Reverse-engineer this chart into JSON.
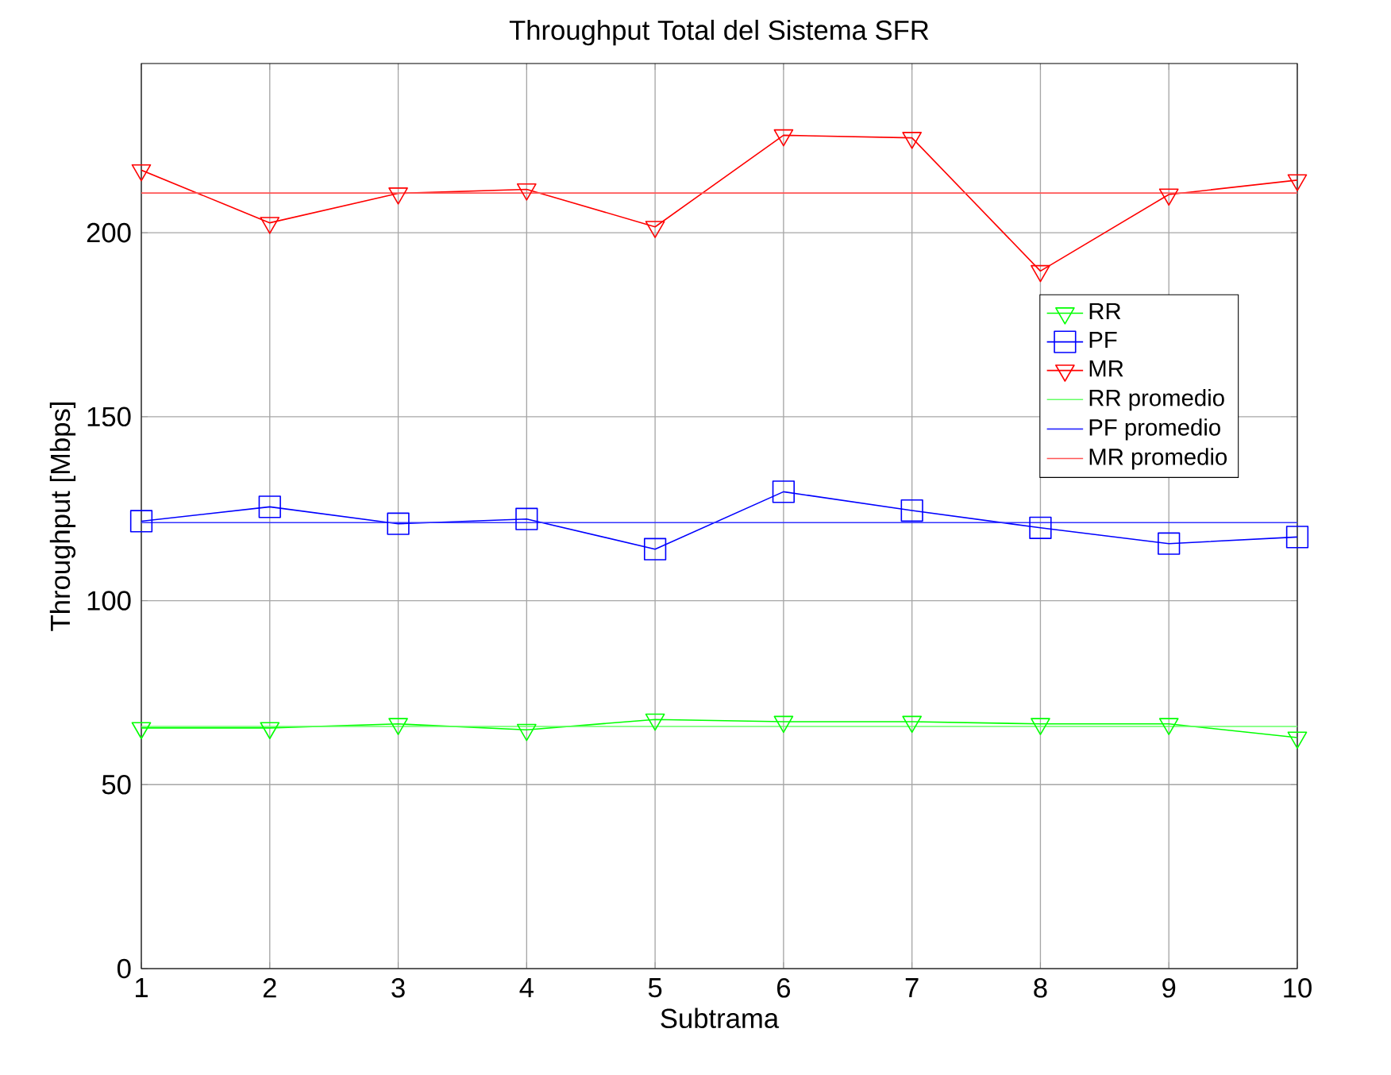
{
  "chart_data": {
    "type": "line",
    "title": "Throughput Total del Sistema SFR",
    "xlabel": "Subtrama",
    "ylabel": "Throughput [Mbps]",
    "x": [
      1,
      2,
      3,
      4,
      5,
      6,
      7,
      8,
      9,
      10
    ],
    "series": [
      {
        "name": "RR",
        "color": "#00ff00",
        "marker": "triangle",
        "values": [
          65.4,
          65.4,
          66.5,
          64.9,
          67.7,
          67.1,
          67.1,
          66.5,
          66.5,
          62.8
        ]
      },
      {
        "name": "PF",
        "color": "#0000ff",
        "marker": "square",
        "values": [
          121.6,
          125.5,
          120.9,
          122.2,
          114,
          129.6,
          124.5,
          119.8,
          115.5,
          117.3
        ]
      },
      {
        "name": "MR",
        "color": "#ff0000",
        "marker": "triangle",
        "values": [
          217,
          202.7,
          210.7,
          211.8,
          201.6,
          226.5,
          225.8,
          189.6,
          210.4,
          214.3
        ]
      },
      {
        "name": "RR promedio",
        "color": "#66ff66",
        "marker": "none",
        "values": [
          65.8,
          65.8,
          65.8,
          65.8,
          65.8,
          65.8,
          65.8,
          65.8,
          65.8,
          65.8
        ]
      },
      {
        "name": "PF promedio",
        "color": "#3333ff",
        "marker": "none",
        "values": [
          121.2,
          121.2,
          121.2,
          121.2,
          121.2,
          121.2,
          121.2,
          121.2,
          121.2,
          121.2
        ]
      },
      {
        "name": "MR promedio",
        "color": "#ff5555",
        "marker": "none",
        "values": [
          210.8,
          210.8,
          210.8,
          210.8,
          210.8,
          210.8,
          210.8,
          210.8,
          210.8,
          210.8
        ]
      }
    ],
    "xlim": [
      1,
      10
    ],
    "xticks": [
      1,
      2,
      3,
      4,
      5,
      6,
      7,
      8,
      9,
      10
    ],
    "ylim": [
      0,
      246
    ],
    "yticks": [
      0,
      50,
      100,
      150,
      200
    ],
    "grid": true,
    "legend": "right"
  }
}
